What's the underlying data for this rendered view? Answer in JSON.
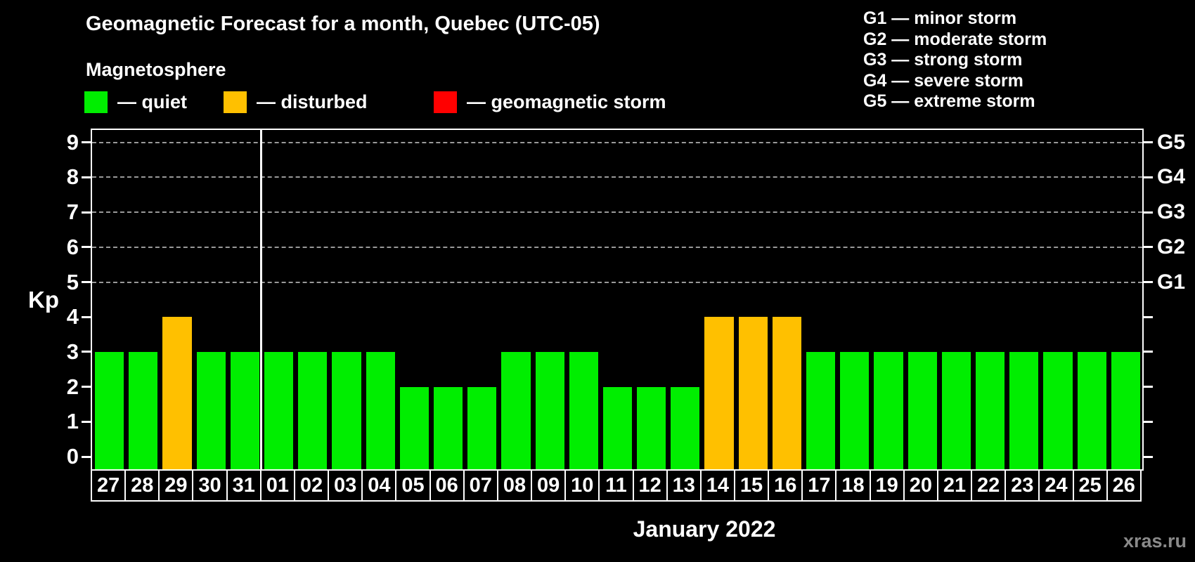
{
  "title": "Geomagnetic Forecast for a month, Quebec (UTC-05)",
  "subtitle": "Magnetosphere",
  "legend": {
    "colors": {
      "quiet": "#00ee00",
      "disturbed": "#ffc000",
      "storm": "#ff0000"
    },
    "items": [
      {
        "key": "quiet",
        "label": "— quiet"
      },
      {
        "key": "disturbed",
        "label": "— disturbed"
      },
      {
        "key": "storm",
        "label": "— geomagnetic storm"
      }
    ]
  },
  "storm_scale": [
    "G1 — minor storm",
    "G2 — moderate storm",
    "G3 — strong storm",
    "G4 — severe storm",
    "G5 — extreme storm"
  ],
  "watermark": "xras.ru",
  "chart_data": {
    "type": "bar",
    "title": "Geomagnetic Forecast for a month, Quebec (UTC-05)",
    "ylabel": "Kp",
    "xlabel": "January 2022",
    "ylim": [
      0,
      9
    ],
    "yticks": [
      0,
      1,
      2,
      3,
      4,
      5,
      6,
      7,
      8,
      9
    ],
    "grid": {
      "horizontal_dashed_at": [
        5,
        6,
        7,
        8,
        9
      ]
    },
    "right_axis": [
      {
        "kp": 5,
        "label": "G1"
      },
      {
        "kp": 6,
        "label": "G2"
      },
      {
        "kp": 7,
        "label": "G3"
      },
      {
        "kp": 8,
        "label": "G4"
      },
      {
        "kp": 9,
        "label": "G5"
      }
    ],
    "categories": [
      "27",
      "28",
      "29",
      "30",
      "31",
      "01",
      "02",
      "03",
      "04",
      "05",
      "06",
      "07",
      "08",
      "09",
      "10",
      "11",
      "12",
      "13",
      "14",
      "15",
      "16",
      "17",
      "18",
      "19",
      "20",
      "21",
      "22",
      "23",
      "24",
      "25",
      "26"
    ],
    "values": [
      3,
      3,
      4,
      3,
      3,
      3,
      3,
      3,
      3,
      2,
      2,
      2,
      3,
      3,
      3,
      2,
      2,
      2,
      4,
      4,
      4,
      3,
      3,
      3,
      3,
      3,
      3,
      3,
      3,
      3,
      3
    ],
    "statuses": [
      "quiet",
      "quiet",
      "disturbed",
      "quiet",
      "quiet",
      "quiet",
      "quiet",
      "quiet",
      "quiet",
      "quiet",
      "quiet",
      "quiet",
      "quiet",
      "quiet",
      "quiet",
      "quiet",
      "quiet",
      "quiet",
      "disturbed",
      "disturbed",
      "disturbed",
      "quiet",
      "quiet",
      "quiet",
      "quiet",
      "quiet",
      "quiet",
      "quiet",
      "quiet",
      "quiet",
      "quiet"
    ],
    "month_separator_after_index": 4
  }
}
